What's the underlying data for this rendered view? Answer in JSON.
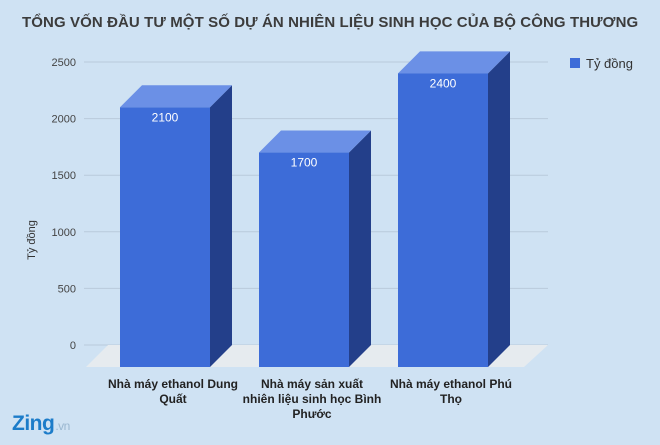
{
  "chart_data": {
    "type": "bar",
    "title": "TỔNG VỐN ĐẦU TƯ MỘT SỐ DỰ ÁN NHIÊN LIỆU SINH HỌC CỦA BỘ CÔNG THƯƠNG",
    "categories": [
      [
        "Nhà máy ethanol Dung",
        "Quất"
      ],
      [
        "Nhà máy sản xuất",
        "nhiên liệu sinh học Bình",
        "Phước"
      ],
      [
        "Nhà máy ethanol Phú",
        "Thọ"
      ]
    ],
    "series": [
      {
        "name": "Tỷ đồng",
        "values": [
          2100,
          1700,
          2400
        ]
      }
    ],
    "data_labels": [
      "2100",
      "1700",
      "2400"
    ],
    "yticks": [
      "0",
      "500",
      "1000",
      "1500",
      "2000",
      "2500"
    ],
    "ylabel": "Tỷ đồng",
    "ylim": [
      0,
      2500
    ],
    "grid": true,
    "legend_position": "top-right",
    "colors": {
      "bar_front": "#3d6cd8",
      "bar_top": "#6b90e6",
      "bar_side": "#233f8a",
      "floor": "#e6ebef"
    }
  },
  "brand": {
    "logo_text": "Zing",
    "suffix": ".vn"
  }
}
